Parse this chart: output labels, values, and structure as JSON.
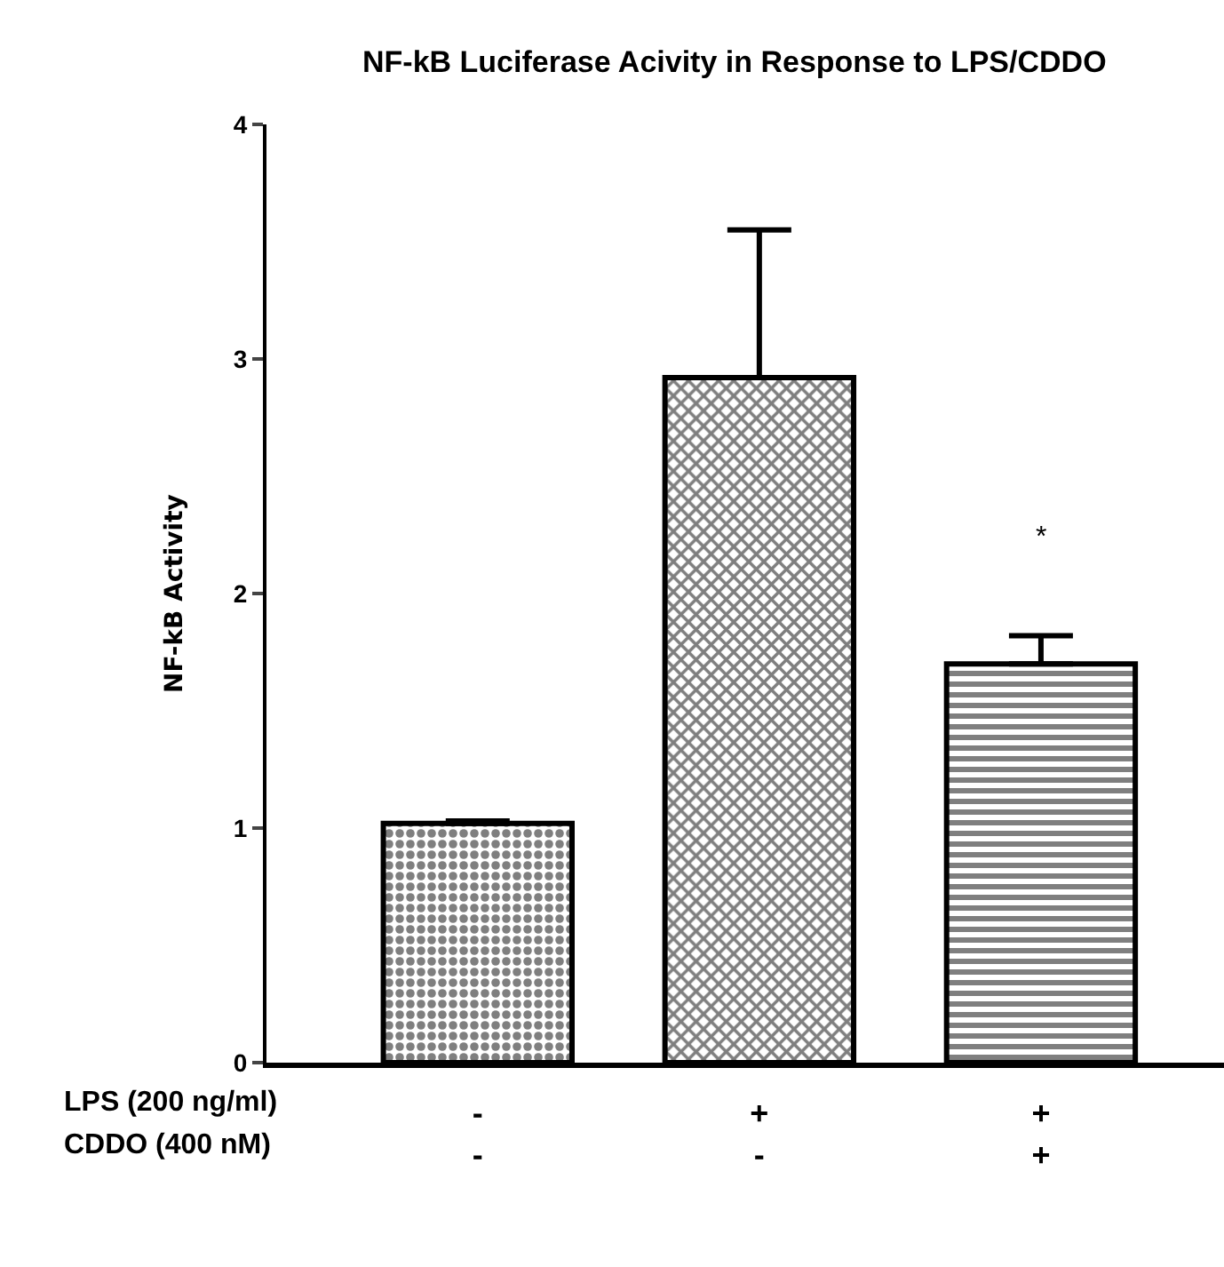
{
  "chart_data": {
    "type": "bar",
    "title": "NF-kB Luciferase Acivity in Response to LPS/CDDO",
    "ylabel": "NF-kB Activity",
    "categories": [
      "-\n-",
      "+\n-",
      "+\n+"
    ],
    "values": [
      1.02,
      2.92,
      1.7
    ],
    "errors": [
      0.01,
      0.63,
      0.12
    ],
    "colors": [
      "#000000",
      "#000000",
      "#000000"
    ],
    "ylim": [
      0,
      4
    ],
    "yticks": [
      0,
      1,
      2,
      3,
      4
    ],
    "annotations": [
      "*",
      "LPS (200 ng/ml)",
      "CDDO (400 nM)"
    ]
  }
}
